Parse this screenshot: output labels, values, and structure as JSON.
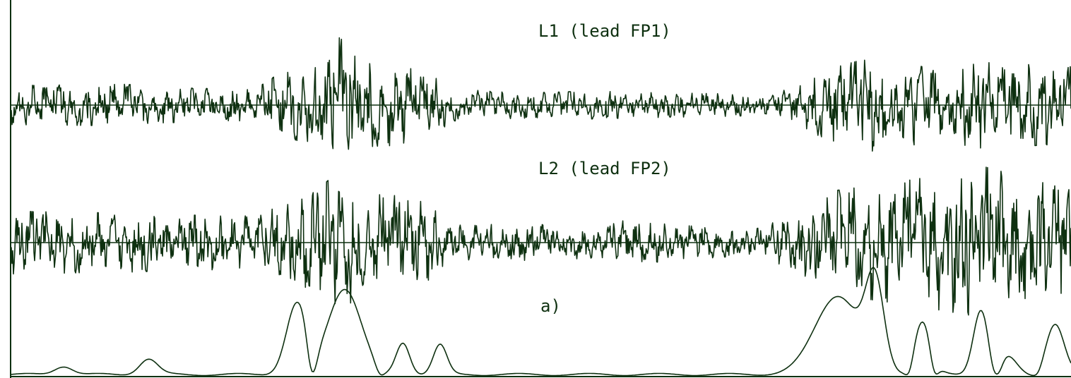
{
  "chart_data": {
    "type": "line",
    "title": "",
    "xlabel": "",
    "ylabel": "",
    "grid": false,
    "legend": "none",
    "color": "#0e3010",
    "series": [
      {
        "name": "L1 (lead FP1)",
        "kind": "eeg",
        "envelope": [
          [
            0,
            28
          ],
          [
            0.12,
            30
          ],
          [
            0.13,
            26
          ],
          [
            0.23,
            22
          ],
          [
            0.25,
            42
          ],
          [
            0.28,
            55
          ],
          [
            0.31,
            98
          ],
          [
            0.33,
            60
          ],
          [
            0.36,
            58
          ],
          [
            0.39,
            48
          ],
          [
            0.42,
            22
          ],
          [
            0.5,
            18
          ],
          [
            0.55,
            20
          ],
          [
            0.6,
            18
          ],
          [
            0.68,
            16
          ],
          [
            0.72,
            14
          ],
          [
            0.74,
            30
          ],
          [
            0.78,
            55
          ],
          [
            0.81,
            68
          ],
          [
            0.86,
            55
          ],
          [
            0.92,
            62
          ],
          [
            1,
            55
          ]
        ]
      },
      {
        "name": "L2 (lead FP2)",
        "kind": "eeg",
        "envelope": [
          [
            0,
            45
          ],
          [
            0.12,
            42
          ],
          [
            0.15,
            40
          ],
          [
            0.23,
            38
          ],
          [
            0.25,
            50
          ],
          [
            0.28,
            65
          ],
          [
            0.31,
            102
          ],
          [
            0.33,
            78
          ],
          [
            0.36,
            68
          ],
          [
            0.39,
            58
          ],
          [
            0.42,
            26
          ],
          [
            0.5,
            26
          ],
          [
            0.55,
            22
          ],
          [
            0.58,
            32
          ],
          [
            0.64,
            24
          ],
          [
            0.7,
            18
          ],
          [
            0.74,
            40
          ],
          [
            0.78,
            75
          ],
          [
            0.85,
            90
          ],
          [
            0.92,
            108
          ],
          [
            1,
            75
          ]
        ]
      },
      {
        "name": "a)",
        "kind": "envelope",
        "peaks": [
          [
            0.05,
            12,
            0.012
          ],
          [
            0.13,
            22,
            0.012
          ],
          [
            0.27,
            100,
            0.014
          ],
          [
            0.315,
            122,
            0.022
          ],
          [
            0.37,
            45,
            0.009
          ],
          [
            0.405,
            42,
            0.009
          ],
          [
            0.78,
            112,
            0.03
          ],
          [
            0.815,
            120,
            0.012
          ],
          [
            0.86,
            75,
            0.012
          ],
          [
            0.915,
            92,
            0.01
          ],
          [
            0.94,
            25,
            0.012
          ],
          [
            0.985,
            72,
            0.012
          ]
        ],
        "dips": [
          0.285,
          0.35,
          0.845,
          0.873,
          0.93,
          0.965
        ]
      }
    ]
  }
}
